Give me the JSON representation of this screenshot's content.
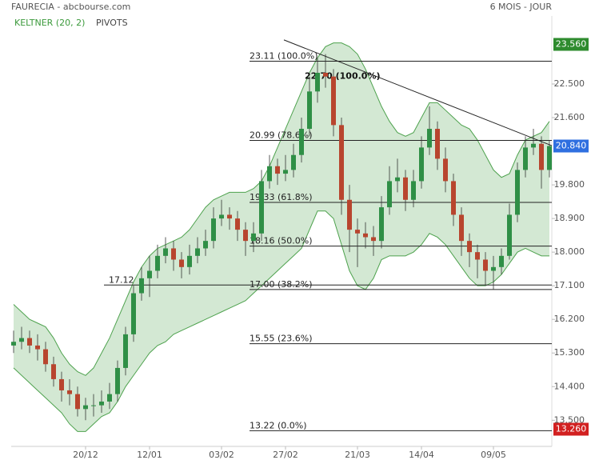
{
  "chart_data": {
    "type": "candlestick",
    "title": "FAURECIA - abcbourse.com",
    "subtitle": "6 MOIS - JOUR",
    "legend": [
      "KELTNER (20, 2)",
      "PIVOTS"
    ],
    "up_color": "#2f8f46",
    "down_color": "#b8452e",
    "band_color": "#4ea24e",
    "categories": [
      null,
      null,
      null,
      null,
      null,
      null,
      null,
      null,
      null,
      "20/12",
      null,
      null,
      null,
      null,
      null,
      null,
      null,
      "12/01",
      null,
      null,
      null,
      null,
      null,
      null,
      null,
      null,
      "03/02",
      null,
      null,
      null,
      null,
      null,
      null,
      null,
      "27/02",
      null,
      null,
      null,
      null,
      null,
      null,
      null,
      null,
      "21/03",
      null,
      null,
      null,
      null,
      null,
      null,
      null,
      "14/04",
      null,
      null,
      null,
      null,
      null,
      null,
      null,
      null,
      "09/05",
      null,
      null,
      null,
      null,
      null,
      null,
      null
    ],
    "open": [
      15.5,
      15.6,
      15.7,
      15.5,
      15.4,
      15.0,
      14.6,
      14.3,
      14.2,
      13.8,
      13.9,
      13.9,
      14.0,
      14.2,
      14.9,
      15.8,
      16.9,
      17.3,
      17.5,
      17.9,
      18.1,
      17.8,
      17.6,
      17.9,
      18.1,
      18.3,
      18.9,
      19.0,
      18.9,
      18.6,
      18.3,
      18.5,
      19.9,
      20.3,
      20.1,
      20.2,
      20.6,
      21.3,
      22.3,
      22.8,
      22.7,
      21.4,
      19.4,
      18.6,
      18.5,
      18.4,
      18.3,
      19.2,
      19.9,
      20.0,
      19.4,
      19.9,
      20.8,
      21.3,
      20.5,
      19.9,
      19.0,
      18.3,
      18.0,
      17.8,
      17.5,
      17.6,
      17.9,
      19.0,
      20.2,
      20.8,
      20.9,
      20.2
    ],
    "high": [
      15.9,
      16.0,
      15.9,
      15.8,
      15.6,
      15.2,
      14.8,
      14.6,
      14.4,
      14.1,
      14.2,
      14.3,
      14.5,
      15.1,
      16.0,
      17.1,
      17.6,
      17.9,
      18.2,
      18.4,
      18.3,
      18.0,
      18.2,
      18.4,
      18.6,
      19.2,
      19.4,
      19.2,
      19.1,
      18.8,
      18.8,
      20.2,
      20.6,
      20.5,
      20.6,
      20.9,
      21.6,
      22.7,
      23.2,
      23.3,
      22.9,
      21.6,
      19.8,
      18.9,
      18.8,
      18.7,
      19.5,
      20.3,
      20.5,
      20.2,
      20.2,
      21.1,
      21.9,
      21.5,
      20.8,
      20.1,
      19.2,
      18.5,
      18.2,
      18.0,
      17.9,
      18.1,
      19.3,
      20.4,
      21.1,
      21.3,
      21.1,
      21.0
    ],
    "low": [
      15.3,
      15.4,
      15.3,
      15.1,
      14.8,
      14.4,
      14.0,
      13.9,
      13.6,
      13.5,
      13.6,
      13.7,
      13.8,
      14.0,
      14.7,
      15.6,
      16.7,
      16.8,
      17.3,
      17.7,
      17.5,
      17.3,
      17.4,
      17.7,
      17.9,
      18.1,
      18.7,
      18.6,
      18.3,
      17.9,
      18.0,
      18.3,
      19.7,
      19.8,
      19.9,
      20.0,
      20.4,
      21.1,
      22.0,
      22.4,
      21.1,
      19.0,
      18.0,
      17.6,
      18.1,
      17.9,
      18.1,
      19.0,
      19.6,
      19.1,
      19.2,
      19.7,
      20.6,
      20.2,
      19.6,
      18.7,
      17.9,
      17.6,
      17.3,
      17.1,
      17.0,
      17.4,
      17.8,
      18.8,
      20.0,
      20.6,
      19.7,
      20.0
    ],
    "close": [
      15.6,
      15.7,
      15.5,
      15.4,
      15.0,
      14.6,
      14.3,
      14.2,
      13.8,
      13.9,
      13.9,
      14.0,
      14.2,
      14.9,
      15.8,
      16.9,
      17.3,
      17.5,
      17.9,
      18.1,
      17.8,
      17.6,
      17.9,
      18.1,
      18.3,
      18.9,
      19.0,
      18.9,
      18.6,
      18.3,
      18.5,
      19.9,
      20.3,
      20.1,
      20.2,
      20.6,
      21.3,
      22.3,
      22.8,
      22.7,
      21.4,
      19.4,
      18.6,
      18.5,
      18.4,
      18.3,
      19.2,
      19.9,
      20.0,
      19.4,
      19.9,
      20.8,
      21.3,
      20.5,
      19.9,
      19.0,
      18.3,
      18.0,
      17.8,
      17.5,
      17.6,
      17.9,
      19.0,
      20.2,
      20.8,
      20.9,
      20.2,
      20.84
    ],
    "upper": [
      16.6,
      16.4,
      16.2,
      16.1,
      16.0,
      15.7,
      15.3,
      15.0,
      14.8,
      14.7,
      14.9,
      15.3,
      15.7,
      16.2,
      16.7,
      17.2,
      17.6,
      17.9,
      18.1,
      18.2,
      18.3,
      18.4,
      18.6,
      18.9,
      19.2,
      19.4,
      19.5,
      19.6,
      19.6,
      19.6,
      19.7,
      19.9,
      20.3,
      20.8,
      21.3,
      21.8,
      22.3,
      22.8,
      23.2,
      23.5,
      23.6,
      23.6,
      23.5,
      23.3,
      22.9,
      22.4,
      21.9,
      21.5,
      21.2,
      21.1,
      21.2,
      21.6,
      22.0,
      22.0,
      21.8,
      21.6,
      21.4,
      21.3,
      21.0,
      20.6,
      20.2,
      20.0,
      20.1,
      20.6,
      21.0,
      21.1,
      21.2,
      21.5
    ],
    "lower": [
      14.9,
      14.7,
      14.5,
      14.3,
      14.1,
      13.9,
      13.7,
      13.4,
      13.2,
      13.2,
      13.4,
      13.6,
      13.7,
      14.0,
      14.4,
      14.7,
      15.0,
      15.3,
      15.5,
      15.6,
      15.8,
      15.9,
      16.0,
      16.1,
      16.2,
      16.3,
      16.4,
      16.5,
      16.6,
      16.7,
      16.9,
      17.1,
      17.3,
      17.5,
      17.7,
      17.9,
      18.1,
      18.6,
      19.1,
      19.1,
      18.9,
      18.2,
      17.5,
      17.1,
      17.0,
      17.3,
      17.8,
      17.9,
      17.9,
      17.9,
      18.0,
      18.2,
      18.5,
      18.4,
      18.2,
      17.9,
      17.6,
      17.3,
      17.1,
      17.1,
      17.2,
      17.4,
      17.7,
      18.0,
      18.1,
      18.0,
      17.9,
      17.9
    ],
    "fib_levels": [
      {
        "value": 23.11,
        "label": "23.11  (100.0%)"
      },
      {
        "value": 20.99,
        "label": "20.99  (78.6%)"
      },
      {
        "value": 19.33,
        "label": "19.33  (61.8%)"
      },
      {
        "value": 18.16,
        "label": "18.16  (50.0%)"
      },
      {
        "value": 17.0,
        "label": "17.00  (38.2%)"
      },
      {
        "value": 15.55,
        "label": "15.55  (23.6%)"
      },
      {
        "value": 13.22,
        "label": "13.22  (0.0%)"
      }
    ],
    "pivot": {
      "value": 17.12,
      "label": "17.12"
    },
    "annotation": {
      "value": 22.7,
      "label": "22.70  (100.0%)"
    },
    "trendline": {
      "x": [
        33.8,
        67.3
      ],
      "y": [
        23.68,
        20.85
      ]
    },
    "price_labels": [
      {
        "value": 23.56,
        "label": "23.560",
        "color": "#2e8b2e"
      },
      {
        "value": 20.84,
        "label": "20.840",
        "color": "#2f6fe0"
      },
      {
        "value": 13.26,
        "label": "13.260",
        "color": "#d22020"
      }
    ],
    "ylim": [
      12.8,
      24.32
    ],
    "yticks": [
      {
        "value": 22.5,
        "label": "22.500"
      },
      {
        "value": 21.6,
        "label": "21.600"
      },
      {
        "value": 19.8,
        "label": "19.800"
      },
      {
        "value": 18.9,
        "label": "18.900"
      },
      {
        "value": 18.0,
        "label": "18.000"
      },
      {
        "value": 17.1,
        "label": "17.100"
      },
      {
        "value": 16.2,
        "label": "16.200"
      },
      {
        "value": 15.3,
        "label": "15.300"
      },
      {
        "value": 14.4,
        "label": "14.400"
      },
      {
        "value": 13.5,
        "label": "13.500"
      }
    ]
  }
}
